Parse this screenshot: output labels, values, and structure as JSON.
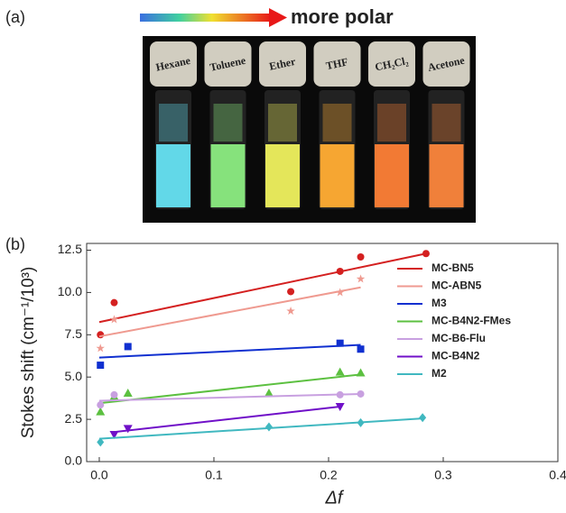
{
  "photo": {
    "panel_label": "(a)",
    "arrow_label": "more polar",
    "vials": [
      {
        "label": "Hexane",
        "color": "#62d8e8"
      },
      {
        "label": "Toluene",
        "color": "#86e27c"
      },
      {
        "label": "Ether",
        "color": "#e4e65a"
      },
      {
        "label": "THF",
        "color": "#f6a632"
      },
      {
        "label": "CH₂Cl₂",
        "color": "#f27a34"
      },
      {
        "label": "Acetone",
        "color": "#f0803a"
      }
    ]
  },
  "chart_data": {
    "type": "scatter",
    "panel_label": "(b)",
    "x_label": "Δf",
    "y_label": "Stokes shift (cm⁻¹/10³)",
    "xlim": [
      -0.011,
      0.4
    ],
    "ylim": [
      0,
      12.9
    ],
    "xticks": [
      {
        "value": 0,
        "label": "0.0"
      },
      0.1,
      0.2,
      0.3,
      0.4
    ],
    "yticks": [
      {
        "value": 0,
        "label": "0.0"
      },
      2.5,
      {
        "value": 5,
        "label": "5.0"
      },
      7.5,
      {
        "value": 10,
        "label": "10.0"
      },
      12.5
    ],
    "legend": "upper right",
    "series": [
      {
        "name": "MC-BN5",
        "color": "#d42020",
        "marker": "circle",
        "x": [
          0.001,
          0.013,
          0.167,
          0.21,
          0.228,
          0.285
        ],
        "values": [
          7.5,
          9.4,
          10.05,
          11.25,
          12.1,
          12.3
        ],
        "fit_x": [
          0,
          0.285
        ],
        "fit_y": [
          8.25,
          12.3
        ]
      },
      {
        "name": "MC-ABN5",
        "color": "#ef9a90",
        "marker": "star",
        "x": [
          0.001,
          0.013,
          0.167,
          0.21,
          0.228
        ],
        "values": [
          6.7,
          8.4,
          8.9,
          10.0,
          10.8
        ],
        "fit_x": [
          0,
          0.228
        ],
        "fit_y": [
          7.4,
          10.3
        ]
      },
      {
        "name": "M3",
        "color": "#1030d0",
        "marker": "square",
        "x": [
          0.001,
          0.025,
          0.21,
          0.228
        ],
        "values": [
          5.7,
          6.8,
          7.0,
          6.65
        ],
        "fit_x": [
          0,
          0.228
        ],
        "fit_y": [
          6.15,
          6.9
        ]
      },
      {
        "name": "MC-B4N2-FMes",
        "color": "#5cc040",
        "marker": "triangle",
        "x": [
          0.001,
          0.013,
          0.025,
          0.148,
          0.21,
          0.228
        ],
        "values": [
          2.95,
          3.85,
          4.05,
          4.05,
          5.3,
          5.25
        ],
        "fit_x": [
          0,
          0.228
        ],
        "fit_y": [
          3.45,
          5.15
        ]
      },
      {
        "name": "MC-B6-Flu",
        "color": "#c8a0e0",
        "marker": "circle",
        "x": [
          0.001,
          0.013,
          0.21,
          0.228
        ],
        "values": [
          3.35,
          3.95,
          3.95,
          4.0
        ],
        "fit_x": [
          0,
          0.228
        ],
        "fit_y": [
          3.6,
          4.0
        ]
      },
      {
        "name": "MC-B4N2",
        "color": "#7010c8",
        "marker": "triangle-down",
        "x": [
          0.013,
          0.025,
          0.21
        ],
        "values": [
          1.6,
          1.95,
          3.25
        ],
        "fit_x": [
          0.013,
          0.21
        ],
        "fit_y": [
          1.75,
          3.25
        ]
      },
      {
        "name": "M2",
        "color": "#40b8c0",
        "marker": "diamond",
        "x": [
          0.001,
          0.148,
          0.228,
          0.282
        ],
        "values": [
          1.15,
          2.05,
          2.3,
          2.6
        ],
        "fit_x": [
          0,
          0.282
        ],
        "fit_y": [
          1.35,
          2.55
        ]
      }
    ]
  }
}
